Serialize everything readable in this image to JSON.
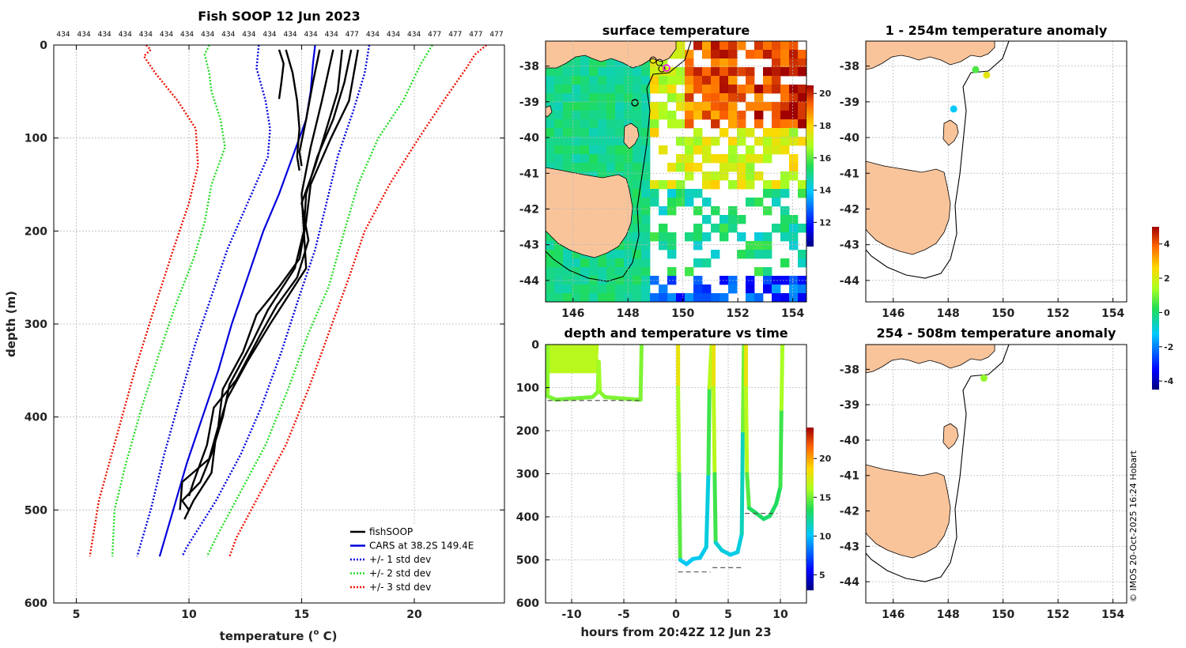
{
  "copyright": "© IMOS 20-Oct-2025 16:24 Hobart",
  "chart_data": [
    {
      "id": "profile",
      "type": "line",
      "title": "Fish SOOP 12 Jun 2023",
      "xlabel": "temperature (",
      "xlabel_sup": "o",
      "xlabel_end": " C)",
      "ylabel": "depth (m)",
      "xlim": [
        4,
        24
      ],
      "ylim": [
        0,
        600
      ],
      "xticks": [
        5,
        10,
        15,
        20
      ],
      "yticks": [
        0,
        100,
        200,
        300,
        400,
        500,
        600
      ],
      "top_labels": [
        "434",
        "434",
        "434",
        "434",
        "434",
        "434",
        "434",
        "434",
        "434",
        "434",
        "434",
        "434",
        "434",
        "434",
        "477",
        "434",
        "434",
        "434",
        "477",
        "477",
        "477",
        "477"
      ],
      "legend": [
        {
          "label": "fishSOOP",
          "color": "#000000",
          "style": "solid"
        },
        {
          "label": "CARS at 38.2S 149.4E",
          "color": "#0000dd",
          "style": "solid"
        },
        {
          "label": "+/- 1 std dev",
          "color": "#0000dd",
          "style": "dotted"
        },
        {
          "label": "+/- 2 std dev",
          "color": "#22dd22",
          "style": "dotted"
        },
        {
          "label": "+/- 3 std dev",
          "color": "#ee1100",
          "style": "dotted"
        }
      ],
      "series": [
        {
          "name": "CARS at 38.2S 149.4E",
          "color": "#0000dd",
          "style": "solid",
          "points": [
            [
              15.6,
              0
            ],
            [
              15.5,
              20
            ],
            [
              15.4,
              50
            ],
            [
              15.2,
              80
            ],
            [
              14.6,
              120
            ],
            [
              14.0,
              160
            ],
            [
              13.3,
              200
            ],
            [
              12.6,
              250
            ],
            [
              11.9,
              300
            ],
            [
              11.3,
              350
            ],
            [
              10.6,
              400
            ],
            [
              9.9,
              450
            ],
            [
              9.3,
              500
            ],
            [
              8.7,
              550
            ]
          ]
        },
        {
          "name": "+1 std dev",
          "color": "#0000dd",
          "style": "dotted",
          "points": [
            [
              18.0,
              0
            ],
            [
              17.8,
              30
            ],
            [
              17.3,
              70
            ],
            [
              16.6,
              120
            ],
            [
              16.1,
              170
            ],
            [
              15.6,
              220
            ],
            [
              14.9,
              270
            ],
            [
              14.1,
              330
            ],
            [
              13.2,
              390
            ],
            [
              12.3,
              440
            ],
            [
              11.2,
              490
            ],
            [
              9.9,
              540
            ],
            [
              9.7,
              550
            ]
          ]
        },
        {
          "name": "-1 std dev",
          "color": "#0000dd",
          "style": "dotted",
          "points": [
            [
              13.1,
              0
            ],
            [
              13.0,
              25
            ],
            [
              13.4,
              60
            ],
            [
              13.6,
              90
            ],
            [
              13.5,
              120
            ],
            [
              12.6,
              170
            ],
            [
              11.7,
              220
            ],
            [
              11.0,
              270
            ],
            [
              10.3,
              320
            ],
            [
              9.6,
              380
            ],
            [
              8.9,
              440
            ],
            [
              8.3,
              500
            ],
            [
              7.7,
              550
            ]
          ]
        },
        {
          "name": "+2 std dev",
          "color": "#22dd22",
          "style": "dotted",
          "points": [
            [
              20.8,
              0
            ],
            [
              20.3,
              20
            ],
            [
              19.5,
              60
            ],
            [
              18.4,
              100
            ],
            [
              17.5,
              150
            ],
            [
              16.9,
              200
            ],
            [
              16.2,
              260
            ],
            [
              15.3,
              310
            ],
            [
              14.4,
              370
            ],
            [
              13.4,
              430
            ],
            [
              12.3,
              480
            ],
            [
              11.2,
              530
            ],
            [
              10.8,
              550
            ]
          ]
        },
        {
          "name": "-2 std dev",
          "color": "#22dd22",
          "style": "dotted",
          "points": [
            [
              10.9,
              0
            ],
            [
              10.7,
              10
            ],
            [
              10.9,
              30
            ],
            [
              11.0,
              50
            ],
            [
              11.4,
              80
            ],
            [
              11.6,
              110
            ],
            [
              11.0,
              150
            ],
            [
              10.7,
              190
            ],
            [
              10.2,
              230
            ],
            [
              9.4,
              280
            ],
            [
              8.7,
              330
            ],
            [
              7.9,
              390
            ],
            [
              7.2,
              450
            ],
            [
              6.7,
              500
            ],
            [
              6.6,
              550
            ]
          ]
        },
        {
          "name": "+3 std dev",
          "color": "#ee1100",
          "style": "dotted",
          "points": [
            [
              23.2,
              0
            ],
            [
              22.7,
              10
            ],
            [
              22.3,
              25
            ],
            [
              21.3,
              60
            ],
            [
              20.2,
              100
            ],
            [
              18.9,
              150
            ],
            [
              17.8,
              200
            ],
            [
              17.1,
              250
            ],
            [
              16.2,
              310
            ],
            [
              15.3,
              370
            ],
            [
              14.3,
              430
            ],
            [
              13.2,
              480
            ],
            [
              12.1,
              530
            ],
            [
              11.8,
              550
            ]
          ]
        },
        {
          "name": "-3 std dev",
          "color": "#ee1100",
          "style": "dotted",
          "points": [
            [
              8.1,
              0
            ],
            [
              8.3,
              5
            ],
            [
              8.0,
              12
            ],
            [
              8.5,
              30
            ],
            [
              9.5,
              60
            ],
            [
              10.3,
              90
            ],
            [
              10.4,
              130
            ],
            [
              10.0,
              170
            ],
            [
              9.3,
              220
            ],
            [
              8.5,
              280
            ],
            [
              7.6,
              350
            ],
            [
              6.8,
              420
            ],
            [
              6.0,
              490
            ],
            [
              5.6,
              550
            ]
          ]
        }
      ],
      "fish_profiles": [
        {
          "color": "#000000",
          "points": [
            [
              14.0,
              5
            ],
            [
              14.2,
              20
            ],
            [
              14.1,
              40
            ],
            [
              14.0,
              58
            ]
          ]
        },
        {
          "color": "#000000",
          "points": [
            [
              14.3,
              5
            ],
            [
              14.6,
              30
            ],
            [
              14.8,
              60
            ],
            [
              14.9,
              90
            ],
            [
              14.8,
              120
            ],
            [
              14.9,
              135
            ]
          ]
        },
        {
          "color": "#000000",
          "points": [
            [
              15.8,
              5
            ],
            [
              15.5,
              40
            ],
            [
              15.2,
              80
            ],
            [
              14.9,
              115
            ],
            [
              15.0,
              130
            ]
          ]
        },
        {
          "color": "#000000",
          "points": [
            [
              17.2,
              5
            ],
            [
              16.9,
              40
            ],
            [
              16.4,
              80
            ],
            [
              15.7,
              120
            ],
            [
              15.2,
              160
            ],
            [
              15.1,
              200
            ],
            [
              15.2,
              240
            ],
            [
              14.4,
              270
            ],
            [
              13.6,
              300
            ],
            [
              12.6,
              340
            ],
            [
              11.7,
              380
            ],
            [
              11.2,
              420
            ],
            [
              11.0,
              460
            ],
            [
              10.2,
              490
            ],
            [
              9.8,
              510
            ]
          ]
        },
        {
          "color": "#000000",
          "points": [
            [
              16.8,
              5
            ],
            [
              16.6,
              50
            ],
            [
              16.1,
              90
            ],
            [
              15.6,
              130
            ],
            [
              15.0,
              170
            ],
            [
              15.3,
              210
            ],
            [
              14.8,
              250
            ],
            [
              13.9,
              280
            ],
            [
              13.2,
              310
            ],
            [
              12.1,
              360
            ],
            [
              11.1,
              390
            ],
            [
              10.8,
              430
            ],
            [
              10.2,
              470
            ],
            [
              10.0,
              485
            ]
          ]
        },
        {
          "color": "#000000",
          "points": [
            [
              17.5,
              5
            ],
            [
              17.1,
              60
            ],
            [
              16.3,
              100
            ],
            [
              15.4,
              150
            ],
            [
              15.2,
              190
            ],
            [
              14.9,
              230
            ],
            [
              14.0,
              260
            ],
            [
              13.0,
              290
            ],
            [
              12.4,
              330
            ],
            [
              11.5,
              370
            ],
            [
              11.3,
              410
            ],
            [
              10.9,
              445
            ],
            [
              9.7,
              470
            ],
            [
              9.6,
              500
            ]
          ]
        },
        {
          "color": "#000000",
          "points": [
            [
              16.4,
              5
            ],
            [
              15.9,
              60
            ],
            [
              15.4,
              110
            ],
            [
              15.0,
              160
            ],
            [
              15.1,
              200
            ],
            [
              14.7,
              240
            ],
            [
              13.5,
              285
            ],
            [
              12.8,
              320
            ],
            [
              11.8,
              365
            ],
            [
              11.5,
              400
            ],
            [
              11.0,
              440
            ],
            [
              10.5,
              470
            ],
            [
              9.7,
              490
            ],
            [
              10.0,
              500
            ]
          ]
        }
      ]
    },
    {
      "id": "sst_map",
      "type": "heatmap",
      "title": "surface temperature",
      "xlim": [
        145,
        154.5
      ],
      "ylim": [
        -44.6,
        -37.3
      ],
      "xticks": [
        146,
        148,
        150,
        152,
        154
      ],
      "yticks": [
        -38,
        -39,
        -40,
        -41,
        -42,
        -43,
        -44
      ],
      "colorbar": {
        "ticks": [
          12,
          14,
          16,
          18,
          20
        ],
        "range": [
          10.5,
          20.5
        ]
      }
    },
    {
      "id": "time_depth",
      "type": "scatter",
      "title": "depth and temperature vs time",
      "xlabel": "hours from 20:42Z 12 Jun 23",
      "xlim": [
        -12.5,
        12.5
      ],
      "ylim": [
        0,
        600
      ],
      "xticks": [
        -10,
        -5,
        0,
        5,
        10
      ],
      "yticks": [
        0,
        100,
        200,
        300,
        400,
        500,
        600
      ],
      "colorbar": {
        "ticks": [
          5,
          10,
          15,
          20
        ],
        "range": [
          3,
          24
        ]
      }
    },
    {
      "id": "anom_shallow",
      "type": "scatter",
      "title": "1 - 254m temperature anomaly",
      "xlim": [
        145,
        154.5
      ],
      "ylim": [
        -44.6,
        -37.3
      ],
      "xticks": [
        146,
        148,
        150,
        152,
        154
      ],
      "yticks": [
        -38,
        -39,
        -40,
        -41,
        -42,
        -43,
        -44
      ],
      "points": [
        {
          "lon": 149.0,
          "lat": -38.1,
          "anomaly": 0.6
        },
        {
          "lon": 149.4,
          "lat": -38.25,
          "anomaly": 2.2
        },
        {
          "lon": 148.2,
          "lat": -39.2,
          "anomaly": -1.2
        }
      ]
    },
    {
      "id": "anom_deep",
      "type": "scatter",
      "title": "254 - 508m temperature anomaly",
      "xlim": [
        145,
        154.5
      ],
      "ylim": [
        -44.6,
        -37.3
      ],
      "xticks": [
        146,
        148,
        150,
        152,
        154
      ],
      "yticks": [
        -38,
        -39,
        -40,
        -41,
        -42,
        -43,
        -44
      ],
      "points": [
        {
          "lon": 149.3,
          "lat": -38.25,
          "anomaly": 1.2
        }
      ],
      "colorbar": {
        "ticks": [
          -4,
          -2,
          0,
          2,
          4
        ],
        "range": [
          -4.5,
          5.0
        ]
      }
    }
  ]
}
